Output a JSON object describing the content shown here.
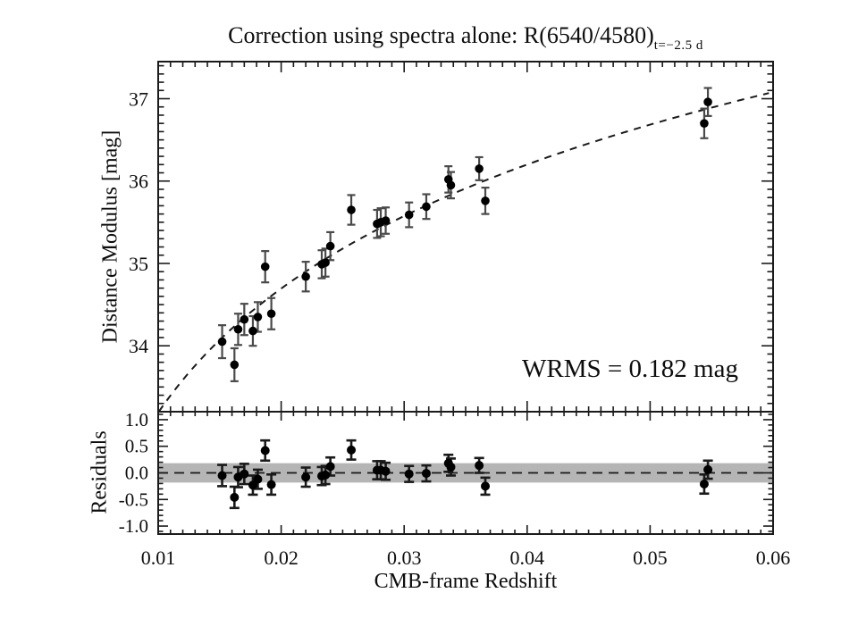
{
  "title": {
    "main": "Correction using spectra alone: R(6540/4580)",
    "subscript": "t=−2.5 d"
  },
  "annotation": {
    "wrms": "WRMS = 0.182 mag"
  },
  "axes": {
    "x_label": "CMB-frame Redshift",
    "y_label_main": "Distance Modulus  [mag]",
    "y_label_residuals": "Residuals"
  },
  "colors": {
    "background": "#ffffff",
    "axis": "#1a1a1a",
    "text": "#0d0d0d",
    "marker": "#000000",
    "errorbar_main": "#4a4a4a",
    "errorbar_residual": "#1a1a1a",
    "band": "#b5b5b5",
    "curve": "#1a1a1a"
  },
  "chart_data": {
    "type": "scatter",
    "title": "Correction using spectra alone: R(6540/4580)_{t=-2.5 d}",
    "xlabel": "CMB-frame Redshift",
    "x_range": [
      0.01,
      0.06
    ],
    "x_ticks": [
      0.01,
      0.02,
      0.03,
      0.04,
      0.05,
      0.06
    ],
    "x_tick_labels": [
      "0.01",
      "0.02",
      "0.03",
      "0.04",
      "0.05",
      "0.06"
    ],
    "x_minor_step": 0.001,
    "panels": [
      {
        "name": "hubble-diagram",
        "ylabel": "Distance Modulus  [mag]",
        "y_range": [
          33.2,
          37.45
        ],
        "y_ticks": [
          34,
          35,
          36,
          37
        ],
        "y_tick_labels": [
          "34",
          "35",
          "36",
          "37"
        ],
        "y_minor_step": 0.1
      },
      {
        "name": "residuals",
        "ylabel": "Residuals",
        "y_range": [
          -1.15,
          1.15
        ],
        "y_ticks": [
          -1.0,
          -0.5,
          0.0,
          0.5,
          1.0
        ],
        "y_tick_labels": [
          "-1.0",
          "-0.5",
          "0.0",
          "0.5",
          "1.0"
        ],
        "y_minor_step": 0.1
      }
    ],
    "fit_curve": {
      "formula": "mu = A + 5*log10(z)",
      "A": 43.19,
      "style": "dashed"
    },
    "wrms_mag": 0.182,
    "residual_band_halfwidth": 0.182,
    "grid": false,
    "legend": false,
    "points": [
      {
        "z": 0.0152,
        "mu": 34.05,
        "err": 0.2,
        "res": -0.05
      },
      {
        "z": 0.0162,
        "mu": 33.77,
        "err": 0.2,
        "res": -0.46
      },
      {
        "z": 0.0165,
        "mu": 34.2,
        "err": 0.19,
        "res": -0.08
      },
      {
        "z": 0.017,
        "mu": 34.32,
        "err": 0.19,
        "res": -0.02
      },
      {
        "z": 0.0177,
        "mu": 34.18,
        "err": 0.18,
        "res": -0.23
      },
      {
        "z": 0.0181,
        "mu": 34.35,
        "err": 0.18,
        "res": -0.12
      },
      {
        "z": 0.0187,
        "mu": 34.96,
        "err": 0.19,
        "res": 0.42
      },
      {
        "z": 0.0192,
        "mu": 34.39,
        "err": 0.19,
        "res": -0.22
      },
      {
        "z": 0.022,
        "mu": 34.84,
        "err": 0.18,
        "res": -0.08
      },
      {
        "z": 0.0233,
        "mu": 34.99,
        "err": 0.17,
        "res": -0.06
      },
      {
        "z": 0.0236,
        "mu": 35.01,
        "err": 0.17,
        "res": -0.04
      },
      {
        "z": 0.024,
        "mu": 35.21,
        "err": 0.17,
        "res": 0.12
      },
      {
        "z": 0.0257,
        "mu": 35.65,
        "err": 0.18,
        "res": 0.43
      },
      {
        "z": 0.0278,
        "mu": 35.48,
        "err": 0.17,
        "res": 0.05
      },
      {
        "z": 0.0281,
        "mu": 35.5,
        "err": 0.17,
        "res": 0.05
      },
      {
        "z": 0.0285,
        "mu": 35.52,
        "err": 0.16,
        "res": 0.03
      },
      {
        "z": 0.0304,
        "mu": 35.59,
        "err": 0.15,
        "res": -0.02
      },
      {
        "z": 0.0318,
        "mu": 35.69,
        "err": 0.15,
        "res": -0.01
      },
      {
        "z": 0.0336,
        "mu": 36.02,
        "err": 0.16,
        "res": 0.18
      },
      {
        "z": 0.0338,
        "mu": 35.95,
        "err": 0.16,
        "res": 0.11
      },
      {
        "z": 0.0361,
        "mu": 36.15,
        "err": 0.14,
        "res": 0.14
      },
      {
        "z": 0.0366,
        "mu": 35.76,
        "err": 0.16,
        "res": -0.25
      },
      {
        "z": 0.0544,
        "mu": 36.7,
        "err": 0.18,
        "res": -0.21
      },
      {
        "z": 0.0547,
        "mu": 36.96,
        "err": 0.17,
        "res": 0.06
      }
    ]
  }
}
